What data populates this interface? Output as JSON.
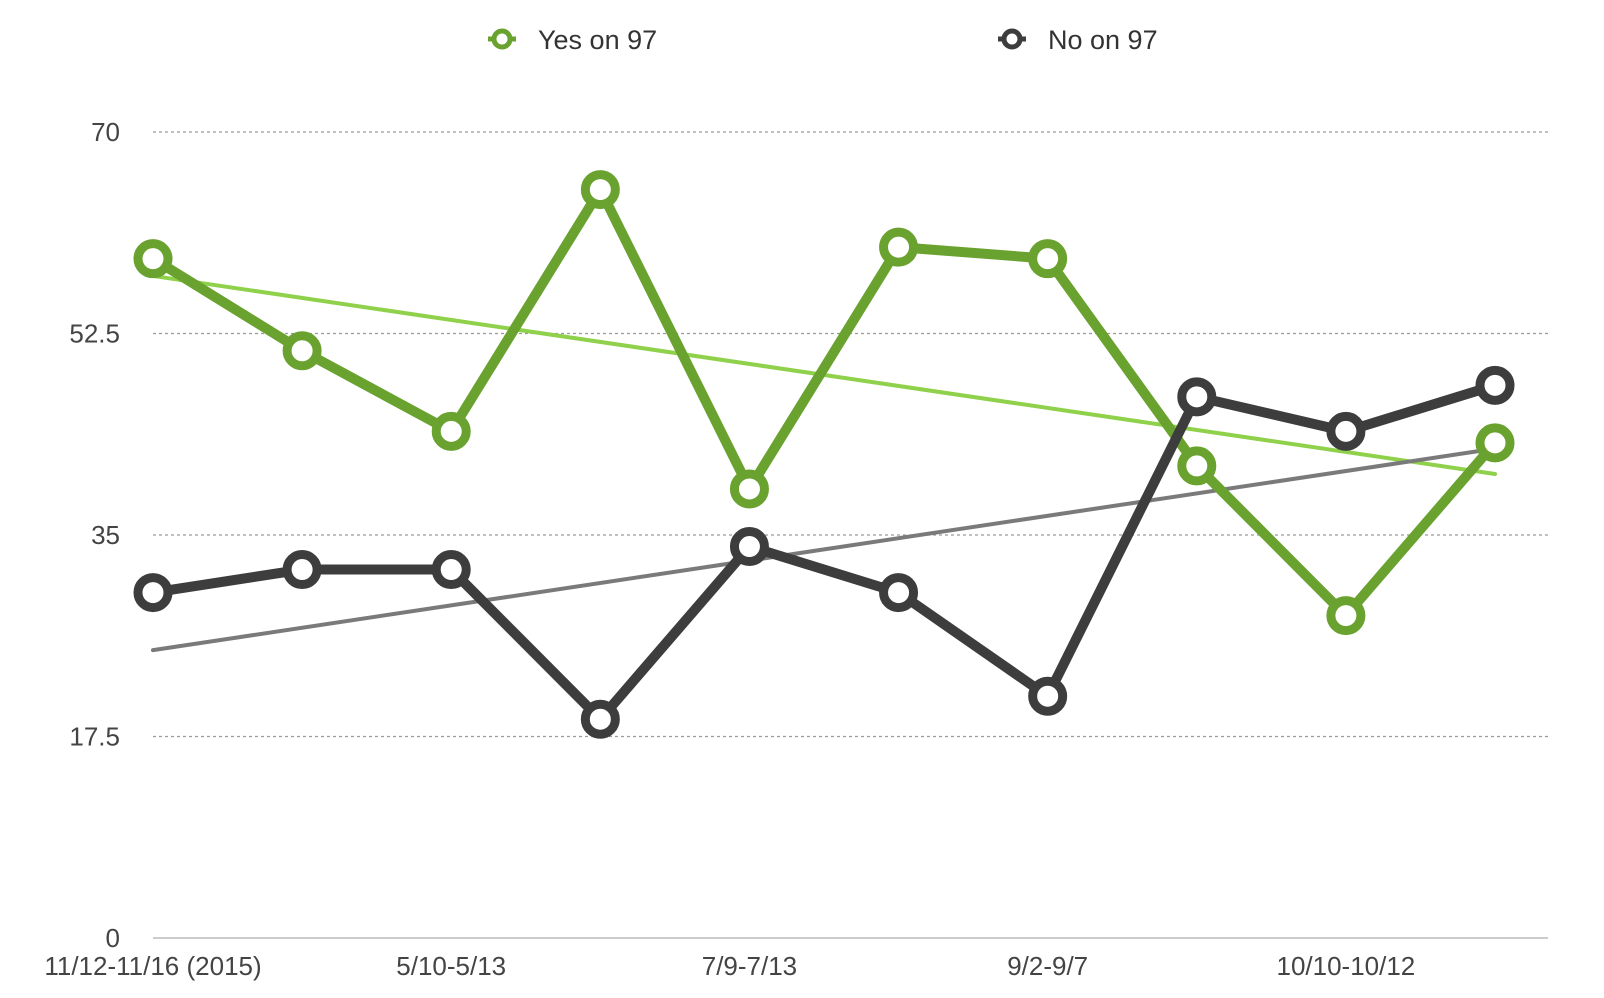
{
  "chart_data": {
    "type": "line",
    "categories": [
      "11/12-11/16 (2015)",
      "",
      "5/10-5/13",
      "",
      "7/9-7/13",
      "",
      "9/2-9/7",
      "",
      "10/10-10/12",
      ""
    ],
    "x_tick_labels": [
      "11/12-11/16 (2015)",
      "5/10-5/13",
      "7/9-7/13",
      "9/2-9/7",
      "10/10-10/12"
    ],
    "ylim": [
      0,
      70
    ],
    "y_ticks": [
      "0",
      "17.5",
      "35",
      "52.5",
      "70"
    ],
    "grid": true,
    "legend_position": "top",
    "series": [
      {
        "name": "Yes on 97",
        "color": "#69a22e",
        "trend_color": "#8fd14a",
        "values": [
          59,
          51,
          44,
          65,
          39,
          60,
          59,
          41,
          28,
          43
        ],
        "trendline": [
          57.5,
          40.3
        ]
      },
      {
        "name": "No on 97",
        "color": "#3d3d3d",
        "trend_color": "#7a7a7a",
        "values": [
          30,
          32,
          32,
          19,
          34,
          30,
          21,
          47,
          44,
          48
        ],
        "trendline": [
          25,
          42.5
        ]
      }
    ]
  }
}
